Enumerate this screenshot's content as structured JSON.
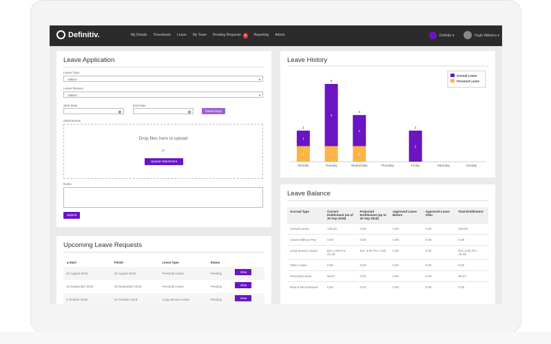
{
  "nav": {
    "brand": "Definitiv.",
    "items": [
      "My Details",
      "Timesheets",
      "Leave",
      "My Team",
      "Pending Requests",
      "Reporting",
      "Admin"
    ],
    "badge": "4",
    "org": "Definitiv",
    "user": "Hugh Williams"
  },
  "leave_application": {
    "title": "Leave Application",
    "leave_type_label": "Leave Type",
    "leave_type_value": "- Select -",
    "leave_reason_label": "Leave Reason",
    "leave_reason_value": "- Select -",
    "start_date_label": "Start Date",
    "end_date_label": "End Date",
    "partial_days": "Partial Days",
    "attachments_label": "Attachments",
    "drop_text": "Drop files here to upload",
    "or": "or",
    "upload_button": "Upload Attachment",
    "notes_label": "Notes",
    "submit": "Submit"
  },
  "upcoming": {
    "title": "Upcoming Leave Requests",
    "columns": [
      "▲Start",
      "Finish",
      "Leave Type",
      "Status"
    ],
    "rows": [
      [
        "22 August 2018",
        "22 August 2018",
        "Personal Leave",
        "Pending",
        "View"
      ],
      [
        "18 September 2018",
        "18 September 2018",
        "Personal Leave",
        "Pending",
        "View"
      ],
      [
        "3 October 2018",
        "24 October 2018",
        "Long Service Leave",
        "Pending",
        "View"
      ]
    ]
  },
  "chart_data": {
    "type": "bar",
    "stacked": true,
    "title": "Leave History",
    "categories": [
      "Monday",
      "Tuesday",
      "Wednesday",
      "Thursday",
      "Friday",
      "Saturday",
      "Sunday"
    ],
    "series": [
      {
        "name": "Annual Leave",
        "color": "#6a14c4",
        "values": [
          1,
          4,
          2,
          null,
          2,
          null,
          null
        ]
      },
      {
        "name": "Personal Leave",
        "color": "#fbb447",
        "values": [
          1,
          1,
          1,
          null,
          null,
          null,
          null
        ]
      }
    ],
    "totals": [
      2,
      5,
      3,
      null,
      2,
      null,
      null
    ],
    "legend": "upper right"
  },
  "balance": {
    "title": "Leave Balance",
    "columns": [
      "Accrual Type",
      "Current Entitlement (as of 30 Sep 2018)",
      "Projected Entitlement (up to 30 Sep 2018)",
      "Approved Leave Before",
      "Approved Leave After",
      "Total Entitlement"
    ],
    "rows": [
      [
        "Annual Leave",
        "135.03",
        "0.00",
        "0.00",
        "0.00",
        "135.03"
      ],
      [
        "Leave Without Pay",
        "0.00",
        "0.00",
        "0.00",
        "0.00",
        "0.00"
      ],
      [
        "Long Service Leave",
        "Ent: 0.00 Pro: 42.40",
        "Ent: 0.00 Pro: 0.00",
        "0.00",
        "0.00",
        "Ent: 0.00 Pro: 42.40"
      ],
      [
        "Other Leave",
        "0.00",
        "0.00",
        "0.00",
        "0.00",
        "0.00"
      ],
      [
        "Personal Leave",
        "66.97",
        "0.00",
        "0.00",
        "0.00",
        "66.97"
      ],
      [
        "Rest & Recreational",
        "0.00",
        "0.00",
        "0.00",
        "0.00",
        "0.00"
      ]
    ]
  }
}
